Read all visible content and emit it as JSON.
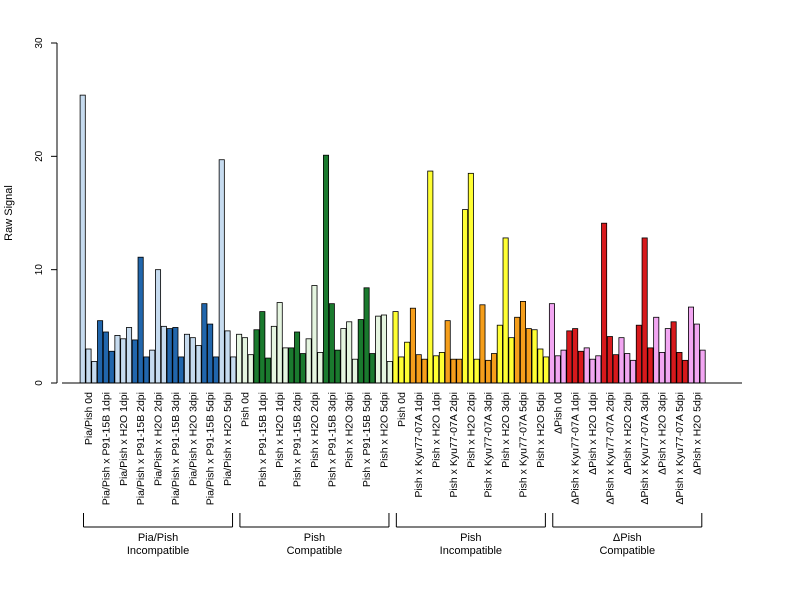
{
  "chart_data": {
    "type": "bar",
    "ylabel": "Raw Signal",
    "ylim": [
      0,
      30
    ],
    "yticks": [
      "0",
      "10",
      "20",
      "30"
    ],
    "colors": {
      "light_blue": "#c6dbef",
      "dark_blue": "#2166ac",
      "light_green": "#e5f5e0",
      "dark_green": "#1a7a2e",
      "yellow": "#ffff33",
      "orange": "#f59e1b",
      "pink": "#f2a6f2",
      "red": "#d7191c"
    },
    "categories": [
      "Pia/Pish 0d",
      "Pia/Pish x P91-15B 1dpi",
      "Pia/Pish x H2O 1dpi",
      "Pia/Pish x P91-15B 2dpi",
      "Pia/Pish x H2O 2dpi",
      "Pia/Pish x P91-15B 3dpi",
      "Pia/Pish x H2O 3dpi",
      "Pia/Pish x P91-15B 5dpi",
      "Pia/Pish x H2O 5dpi",
      "Pish 0d",
      "Pish x P91-15B 1dpi",
      "Pish x H2O 1dpi",
      "Pish x P91-15B 2dpi",
      "Pish x H2O 2dpi",
      "Pish x P91-15B 3dpi",
      "Pish x H2O 3dpi",
      "Pish x P91-15B 5dpi",
      "Pish x H2O 5dpi",
      "Pish 0d",
      "Pish x Kyu77-07A 1dpi",
      "Pish x H2O 1dpi",
      "Pish x Kyu77-07A 2dpi",
      "Pish x H2O 2dpi",
      "Pish x Kyu77-07A 3dpi",
      "Pish x H2O 3dpi",
      "Pish x Kyu77-07A 5dpi",
      "Pish x H2O 5dpi",
      "ΔPish 0d",
      "ΔPish x Kyu77-07A 1dpi",
      "ΔPish x H2O 1dpi",
      "ΔPish x Kyu77-07A 2dpi",
      "ΔPish x H2O 2dpi",
      "ΔPish x Kyu77-07A 3dpi",
      "ΔPish x H2O 3dpi",
      "ΔPish x Kyu77-07A 5dpi",
      "ΔPish x H2O 5dpi"
    ],
    "bar_colors": [
      "light_blue",
      "dark_blue",
      "light_blue",
      "dark_blue",
      "light_blue",
      "dark_blue",
      "light_blue",
      "dark_blue",
      "light_blue",
      "light_green",
      "dark_green",
      "light_green",
      "dark_green",
      "light_green",
      "dark_green",
      "light_green",
      "dark_green",
      "light_green",
      "yellow",
      "orange",
      "yellow",
      "orange",
      "yellow",
      "orange",
      "yellow",
      "orange",
      "yellow",
      "pink",
      "red",
      "pink",
      "red",
      "pink",
      "red",
      "pink",
      "red",
      "pink"
    ],
    "values": [
      [
        25.4,
        3.0,
        1.9
      ],
      [
        5.5,
        4.5,
        2.8
      ],
      [
        4.2,
        3.9,
        4.9
      ],
      [
        3.8,
        11.1,
        2.3
      ],
      [
        2.9,
        10.0,
        5.0
      ],
      [
        4.8,
        4.9,
        2.3
      ],
      [
        4.3,
        4.0,
        3.3
      ],
      [
        7.0,
        5.2,
        2.3
      ],
      [
        19.7,
        4.6,
        2.3
      ],
      [
        4.3,
        4.0,
        2.5
      ],
      [
        4.7,
        6.3,
        2.2
      ],
      [
        5.0,
        7.1,
        3.1
      ],
      [
        3.1,
        4.5,
        2.6
      ],
      [
        3.9,
        8.6,
        2.7
      ],
      [
        20.1,
        7.0,
        2.9
      ],
      [
        4.8,
        5.4,
        2.1
      ],
      [
        5.6,
        8.4,
        2.6
      ],
      [
        5.9,
        6.0,
        1.9
      ],
      [
        6.3,
        2.3,
        3.6
      ],
      [
        6.6,
        2.5,
        2.1
      ],
      [
        18.7,
        2.4,
        2.7
      ],
      [
        5.5,
        2.1,
        2.1
      ],
      [
        15.3,
        18.5,
        2.1
      ],
      [
        6.9,
        2.0,
        2.6
      ],
      [
        5.1,
        12.8,
        4.0
      ],
      [
        5.8,
        7.2,
        4.8
      ],
      [
        4.7,
        3.0,
        2.3
      ],
      [
        7.0,
        2.4,
        2.9
      ],
      [
        4.6,
        4.8,
        2.8
      ],
      [
        3.1,
        2.1,
        2.4
      ],
      [
        14.1,
        4.1,
        2.5
      ],
      [
        4.0,
        2.6,
        2.0
      ],
      [
        5.1,
        12.8,
        3.1
      ],
      [
        5.8,
        2.7,
        4.8
      ],
      [
        5.4,
        2.7,
        2.0
      ],
      [
        6.7,
        5.2,
        2.9
      ]
    ],
    "groups": [
      {
        "label_line1": "Pia/Pish",
        "label_line2": "Incompatible",
        "start": 0,
        "end": 8
      },
      {
        "label_line1": "Pish",
        "label_line2": "Compatible",
        "start": 9,
        "end": 17
      },
      {
        "label_line1": "Pish",
        "label_line2": "Incompatible",
        "start": 18,
        "end": 26
      },
      {
        "label_line1": "ΔPish",
        "label_line2": "Compatible",
        "start": 27,
        "end": 35
      }
    ]
  }
}
